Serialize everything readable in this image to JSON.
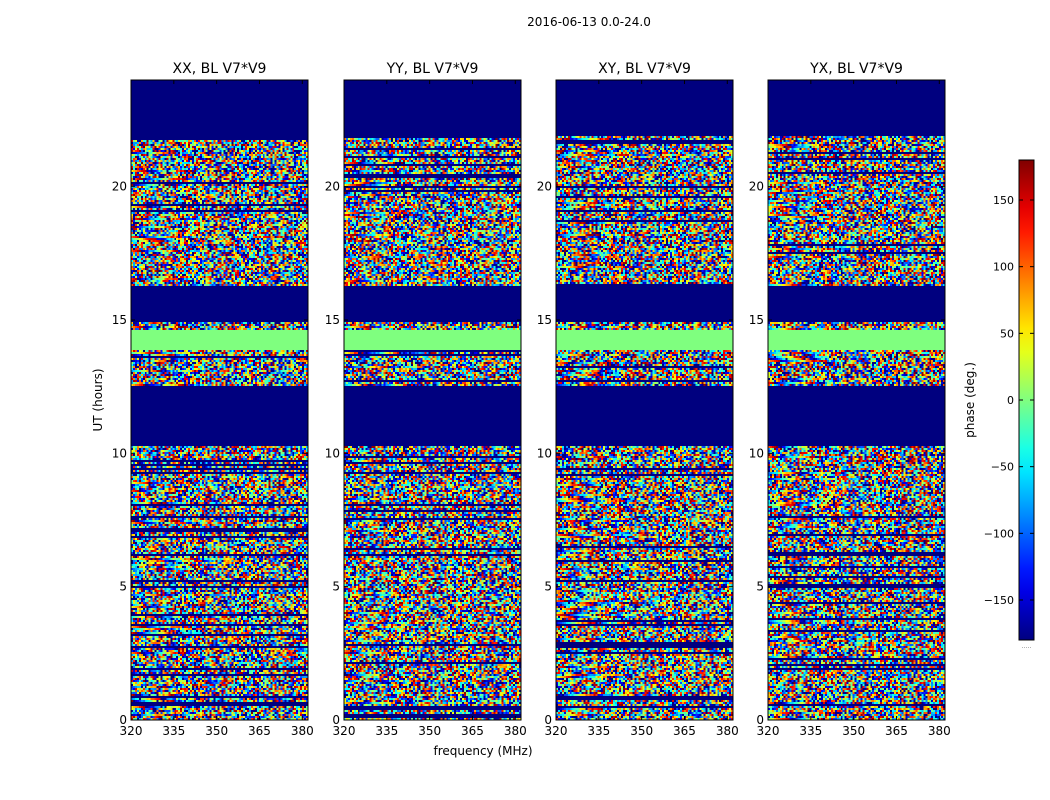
{
  "suptitle": "2016-06-13 0.0-24.0",
  "shared_xlabel": "frequency (MHz)",
  "shared_ylabel": "UT (hours)",
  "colorbar": {
    "label": "phase (deg.)",
    "range": [
      -180,
      180
    ],
    "ticks": [
      -150,
      -100,
      -50,
      0,
      50,
      100,
      150
    ],
    "colormap": "jet",
    "tick_labels": [
      "−150",
      "−100",
      "−50",
      "0",
      "50",
      "100",
      "150"
    ],
    "offset_label": "....."
  },
  "colors": {
    "masked": "#00007f",
    "flagged_band": "#7fff7f",
    "frame": "#000000",
    "background": "#ffffff"
  },
  "chart_data": [
    {
      "type": "heatmap",
      "title": "XX, BL V7*V9",
      "xlabel": "",
      "ylabel": "UT (hours)",
      "xlim": [
        320,
        382
      ],
      "ylim": [
        0,
        24
      ],
      "xticks": [
        320,
        335,
        350,
        365,
        380
      ],
      "yticks": [
        0,
        5,
        10,
        15,
        20
      ],
      "masked_ranges_hours": [
        [
          10.3,
          12.5
        ],
        [
          14.9,
          16.3
        ],
        [
          21.9,
          24.0
        ]
      ],
      "flagged_band_hours": [
        13.9,
        14.6
      ]
    },
    {
      "type": "heatmap",
      "title": "YY, BL V7*V9",
      "xlabel": "frequency (MHz)",
      "ylabel": "",
      "xlim": [
        320,
        382
      ],
      "ylim": [
        0,
        24
      ],
      "xticks": [
        320,
        335,
        350,
        365,
        380
      ],
      "yticks": [
        0,
        5,
        10,
        15,
        20
      ],
      "masked_ranges_hours": [
        [
          10.3,
          12.5
        ],
        [
          14.9,
          16.3
        ],
        [
          21.9,
          24.0
        ]
      ],
      "flagged_band_hours": [
        13.9,
        14.6
      ]
    },
    {
      "type": "heatmap",
      "title": "XY, BL V7*V9",
      "xlabel": "",
      "ylabel": "",
      "xlim": [
        320,
        382
      ],
      "ylim": [
        0,
        24
      ],
      "xticks": [
        320,
        335,
        350,
        365,
        380
      ],
      "yticks": [
        0,
        5,
        10,
        15,
        20
      ],
      "masked_ranges_hours": [
        [
          10.3,
          12.5
        ],
        [
          14.9,
          16.3
        ],
        [
          21.9,
          24.0
        ]
      ],
      "flagged_band_hours": [
        13.9,
        14.6
      ]
    },
    {
      "type": "heatmap",
      "title": "YX, BL V7*V9",
      "xlabel": "",
      "ylabel": "",
      "xlim": [
        320,
        382
      ],
      "ylim": [
        0,
        24
      ],
      "xticks": [
        320,
        335,
        350,
        365,
        380
      ],
      "yticks": [
        0,
        5,
        10,
        15,
        20
      ],
      "masked_ranges_hours": [
        [
          10.3,
          12.5
        ],
        [
          14.9,
          16.3
        ],
        [
          21.9,
          24.0
        ]
      ],
      "flagged_band_hours": [
        13.9,
        14.6
      ]
    }
  ]
}
